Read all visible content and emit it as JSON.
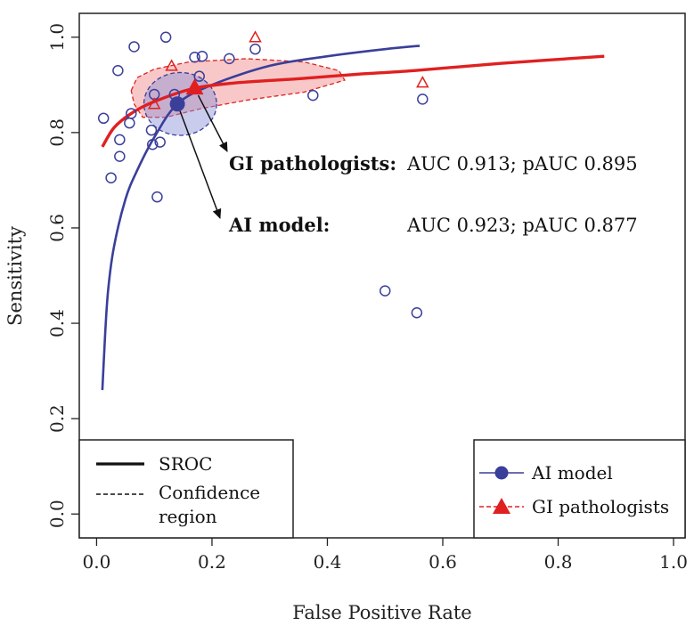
{
  "chart_data": {
    "type": "scatter",
    "title": "",
    "xlabel": "False Positive Rate",
    "ylabel": "Sensitivity",
    "xlim": [
      -0.03,
      1.02
    ],
    "ylim": [
      -0.05,
      1.05
    ],
    "x_ticks": [
      "0.0",
      "0.2",
      "0.4",
      "0.6",
      "0.8",
      "1.0"
    ],
    "y_ticks": [
      "0.0",
      "0.2",
      "0.4",
      "0.6",
      "0.8",
      "1.0"
    ],
    "x_tick_values": [
      0,
      0.2,
      0.4,
      0.6,
      0.8,
      1.0
    ],
    "y_tick_values": [
      0,
      0.2,
      0.4,
      0.6,
      0.8,
      1.0
    ],
    "colors": {
      "ai": "#3a3f9a",
      "gi": "#e02020"
    },
    "series": [
      {
        "name": "AI model",
        "marker": "circle",
        "studies": [
          [
            0.012,
            0.83
          ],
          [
            0.025,
            0.705
          ],
          [
            0.037,
            0.93
          ],
          [
            0.04,
            0.75
          ],
          [
            0.04,
            0.785
          ],
          [
            0.057,
            0.82
          ],
          [
            0.06,
            0.84
          ],
          [
            0.065,
            0.98
          ],
          [
            0.095,
            0.805
          ],
          [
            0.097,
            0.775
          ],
          [
            0.1,
            0.88
          ],
          [
            0.105,
            0.665
          ],
          [
            0.11,
            0.78
          ],
          [
            0.12,
            1.0
          ],
          [
            0.135,
            0.88
          ],
          [
            0.17,
            0.958
          ],
          [
            0.178,
            0.918
          ],
          [
            0.183,
            0.96
          ],
          [
            0.23,
            0.955
          ],
          [
            0.275,
            0.975
          ],
          [
            0.375,
            0.878
          ],
          [
            0.5,
            0.468
          ],
          [
            0.555,
            0.422
          ],
          [
            0.565,
            0.87
          ]
        ],
        "summary": [
          0.14,
          0.86
        ],
        "sroc": [
          [
            0.01,
            0.26
          ],
          [
            0.015,
            0.38
          ],
          [
            0.02,
            0.47
          ],
          [
            0.03,
            0.56
          ],
          [
            0.05,
            0.66
          ],
          [
            0.07,
            0.72
          ],
          [
            0.1,
            0.79
          ],
          [
            0.14,
            0.86
          ],
          [
            0.2,
            0.9
          ],
          [
            0.3,
            0.94
          ],
          [
            0.4,
            0.96
          ],
          [
            0.5,
            0.975
          ],
          [
            0.56,
            0.982
          ]
        ],
        "confidence_region": {
          "center": [
            0.145,
            0.86
          ],
          "rx": 0.063,
          "ry": 0.066
        }
      },
      {
        "name": "GI pathologists",
        "marker": "triangle",
        "studies": [
          [
            0.13,
            0.94
          ],
          [
            0.1,
            0.86
          ],
          [
            0.275,
            1.0
          ],
          [
            0.565,
            0.905
          ]
        ],
        "summary": [
          0.17,
          0.893
        ],
        "sroc": [
          [
            0.01,
            0.77
          ],
          [
            0.03,
            0.81
          ],
          [
            0.06,
            0.84
          ],
          [
            0.1,
            0.865
          ],
          [
            0.17,
            0.893
          ],
          [
            0.25,
            0.905
          ],
          [
            0.35,
            0.913
          ],
          [
            0.45,
            0.922
          ],
          [
            0.55,
            0.93
          ],
          [
            0.7,
            0.945
          ],
          [
            0.88,
            0.96
          ]
        ],
        "confidence_region": [
          [
            0.06,
            0.888
          ],
          [
            0.07,
            0.915
          ],
          [
            0.1,
            0.933
          ],
          [
            0.16,
            0.948
          ],
          [
            0.26,
            0.955
          ],
          [
            0.36,
            0.948
          ],
          [
            0.42,
            0.93
          ],
          [
            0.43,
            0.91
          ],
          [
            0.36,
            0.885
          ],
          [
            0.26,
            0.868
          ],
          [
            0.18,
            0.85
          ],
          [
            0.12,
            0.832
          ],
          [
            0.08,
            0.832
          ],
          [
            0.065,
            0.86
          ]
        ]
      }
    ],
    "annotations": [
      {
        "label": "GI pathologists:",
        "stats": "AUC 0.913;  pAUC 0.895",
        "target": [
          0.17,
          0.893
        ]
      },
      {
        "label": "AI model:",
        "stats": "AUC 0.923;  pAUC 0.877",
        "target": [
          0.14,
          0.86
        ]
      }
    ],
    "legend_left": {
      "placement": "bottom-left",
      "entries": [
        "SROC",
        "Confidence",
        "region"
      ]
    },
    "legend_right": {
      "placement": "bottom-right",
      "entries": [
        "AI model",
        "GI pathologists"
      ]
    }
  }
}
